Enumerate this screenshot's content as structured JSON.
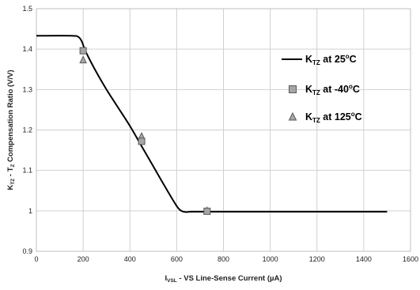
{
  "chart_data": {
    "type": "line",
    "xlabel": "I_VSL - VS Line-Sense Current (µA)",
    "xlabel_main": "I",
    "xlabel_sub": "VSL",
    "xlabel_rest": " - VS Line-Sense Current (µA)",
    "ylabel": "K_TZ - T_Z Compensation Ratio (V/V)",
    "ylabel_k": "K",
    "ylabel_ksub": "TZ",
    "ylabel_mid": " - T",
    "ylabel_tsub": "Z",
    "ylabel_rest": " Compensation Ratio (V/V)",
    "xlim": [
      0,
      1600
    ],
    "ylim": [
      0.9,
      1.5
    ],
    "xticks": [
      "0",
      "200",
      "400",
      "600",
      "800",
      "1000",
      "1200",
      "1400",
      "1600"
    ],
    "yticks": [
      "0.9",
      "1",
      "1.1",
      "1.2",
      "1.3",
      "1.4",
      "1.5"
    ],
    "grid": true,
    "legend_position": "right",
    "series": [
      {
        "name": "KTZ at 25oC",
        "label_main": "K",
        "label_sub": "TZ",
        "label_mid": " at 25",
        "label_sup": "o",
        "label_end": "C",
        "style": "line",
        "x": [
          0,
          150,
          180,
          195,
          210,
          250,
          300,
          350,
          400,
          450,
          500,
          550,
          600,
          620,
          640,
          660,
          700,
          750,
          800,
          1000,
          1200,
          1400,
          1500
        ],
        "y": [
          1.433,
          1.433,
          1.43,
          1.418,
          1.395,
          1.35,
          1.3,
          1.255,
          1.21,
          1.16,
          1.11,
          1.06,
          1.012,
          1.0,
          0.997,
          0.998,
          0.998,
          0.998,
          0.998,
          0.998,
          0.998,
          0.998,
          0.998
        ]
      },
      {
        "name": "KTZ at -40oC",
        "label_main": "K",
        "label_sub": "TZ",
        "label_mid": " at -40",
        "label_sup": "o",
        "label_end": "C",
        "style": "square",
        "x": [
          200,
          450,
          730
        ],
        "y": [
          1.396,
          1.172,
          0.999
        ]
      },
      {
        "name": "KTZ at 125oC",
        "label_main": "K",
        "label_sub": "TZ",
        "label_mid": " at 125",
        "label_sup": "o",
        "label_end": "C",
        "style": "triangle",
        "x": [
          200,
          450,
          730
        ],
        "y": [
          1.373,
          1.184,
          1.0
        ]
      }
    ],
    "colors": {
      "line": "#000000",
      "marker_fill": "#a6a6a6",
      "marker_stroke": "#595959",
      "grid": "#d0d0d0",
      "frame": "#bfbfbf"
    }
  }
}
